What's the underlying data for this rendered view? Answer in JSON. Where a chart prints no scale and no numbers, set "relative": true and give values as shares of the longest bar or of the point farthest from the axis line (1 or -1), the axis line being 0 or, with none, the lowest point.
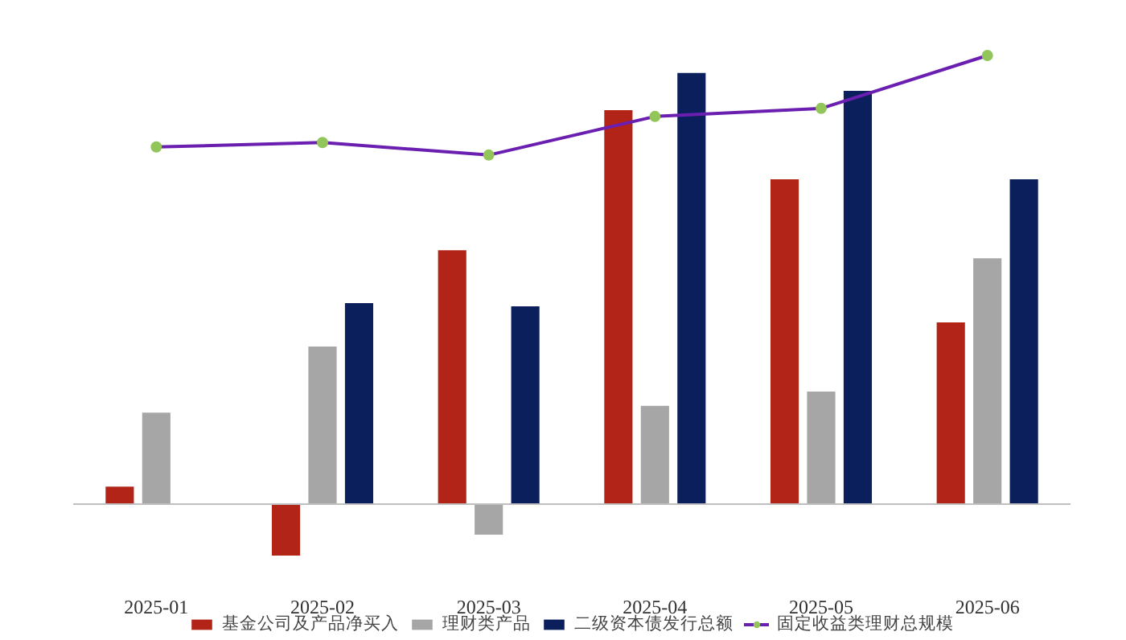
{
  "chart_data": {
    "type": "bar",
    "relative": true,
    "categories": [
      "2025-01",
      "2025-02",
      "2025-03",
      "2025-04",
      "2025-05",
      "2025-06"
    ],
    "series": [
      {
        "name": "基金公司及产品净买入",
        "color": "#b22418",
        "values": [
          0.039,
          -0.115,
          0.566,
          0.878,
          0.724,
          0.405
        ]
      },
      {
        "name": "理财类产品",
        "color": "#a6a6a6",
        "values": [
          0.204,
          0.351,
          -0.068,
          0.219,
          0.251,
          0.548
        ]
      },
      {
        "name": "二级资本债发行总额",
        "color": "#0b1f5c",
        "values": [
          null,
          0.448,
          0.441,
          0.961,
          0.921,
          0.724
        ]
      },
      {
        "name": "固定收益类理财总规模",
        "color": "#6a1fb0",
        "type": "line",
        "values": [
          0.796,
          0.806,
          0.778,
          0.864,
          0.882,
          1.0
        ]
      }
    ],
    "marker": "circle",
    "legend": "bottom",
    "grid": false
  }
}
